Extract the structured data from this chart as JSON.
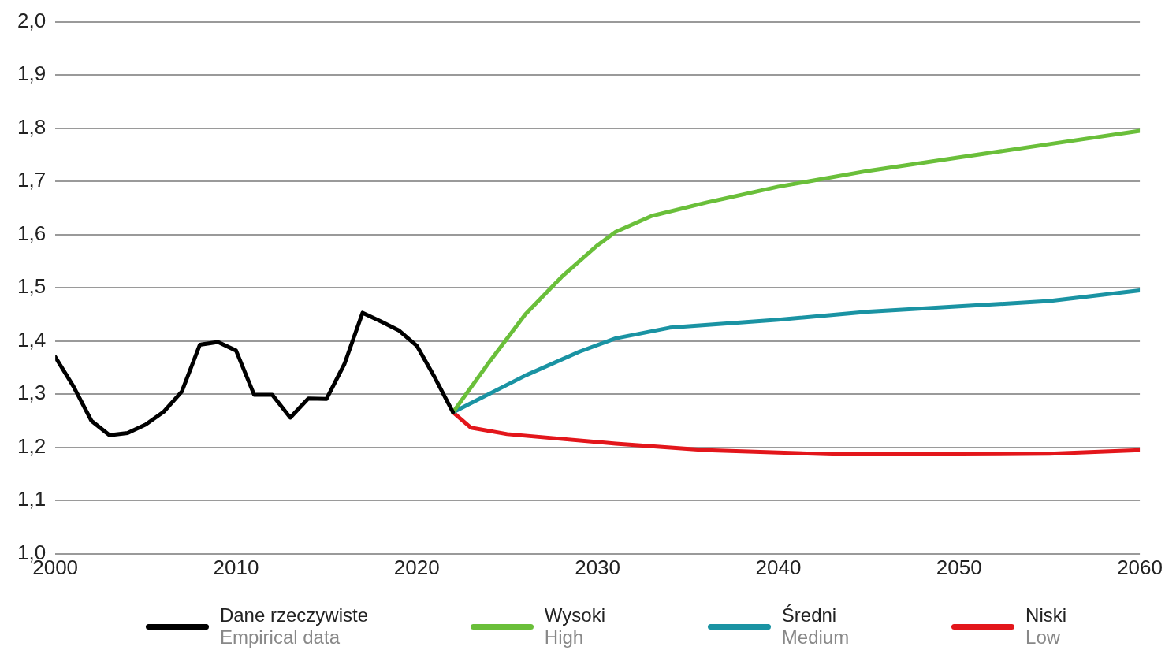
{
  "chart_data": {
    "type": "line",
    "xlim": [
      2000,
      2060
    ],
    "xticks": [
      2000,
      2010,
      2020,
      2030,
      2040,
      2050,
      2060
    ],
    "ylim": [
      1.0,
      2.0
    ],
    "yticks": [
      {
        "value": 1.0,
        "label": "1,0"
      },
      {
        "value": 1.1,
        "label": "1,1"
      },
      {
        "value": 1.2,
        "label": "1,2"
      },
      {
        "value": 1.3,
        "label": "1,3"
      },
      {
        "value": 1.4,
        "label": "1,4"
      },
      {
        "value": 1.5,
        "label": "1,5"
      },
      {
        "value": 1.6,
        "label": "1,6"
      },
      {
        "value": 1.7,
        "label": "1,7"
      },
      {
        "value": 1.8,
        "label": "1,8"
      },
      {
        "value": 1.9,
        "label": "1,9"
      },
      {
        "value": 2.0,
        "label": "2,0"
      }
    ],
    "grid": "y",
    "legend": "bottom",
    "marker": "none",
    "line_style": "solid",
    "series": [
      {
        "name": "Dane rzeczywiste\nEmpirical data",
        "color": "#000000",
        "x": [
          2000,
          2001,
          2002,
          2003,
          2004,
          2005,
          2006,
          2007,
          2008,
          2009,
          2010,
          2011,
          2012,
          2013,
          2014,
          2015,
          2016,
          2017,
          2018,
          2019,
          2020,
          2021,
          2022
        ],
        "values": [
          1.37,
          1.315,
          1.25,
          1.223,
          1.227,
          1.243,
          1.267,
          1.305,
          1.393,
          1.398,
          1.382,
          1.299,
          1.299,
          1.256,
          1.292,
          1.291,
          1.357,
          1.453,
          1.437,
          1.42,
          1.391,
          1.331,
          1.266
        ]
      },
      {
        "name": "Wysoki\nHigh",
        "color": "#6abf3a",
        "x": [
          2022,
          2024,
          2026,
          2028,
          2030,
          2031,
          2033,
          2036,
          2040,
          2045,
          2050,
          2055,
          2060
        ],
        "values": [
          1.266,
          1.36,
          1.45,
          1.52,
          1.58,
          1.605,
          1.635,
          1.66,
          1.69,
          1.72,
          1.745,
          1.77,
          1.795
        ]
      },
      {
        "name": "Średni\nMedium",
        "color": "#1a93a3",
        "x": [
          2022,
          2026,
          2029,
          2031,
          2034,
          2040,
          2045,
          2050,
          2055,
          2060
        ],
        "values": [
          1.266,
          1.335,
          1.38,
          1.405,
          1.425,
          1.44,
          1.455,
          1.465,
          1.475,
          1.495
        ]
      },
      {
        "name": "Niski\nLow",
        "color": "#e3161b",
        "x": [
          2022,
          2023,
          2025,
          2031,
          2036,
          2043,
          2050,
          2055,
          2060
        ],
        "values": [
          1.266,
          1.237,
          1.225,
          1.207,
          1.195,
          1.187,
          1.187,
          1.188,
          1.195
        ]
      }
    ]
  }
}
